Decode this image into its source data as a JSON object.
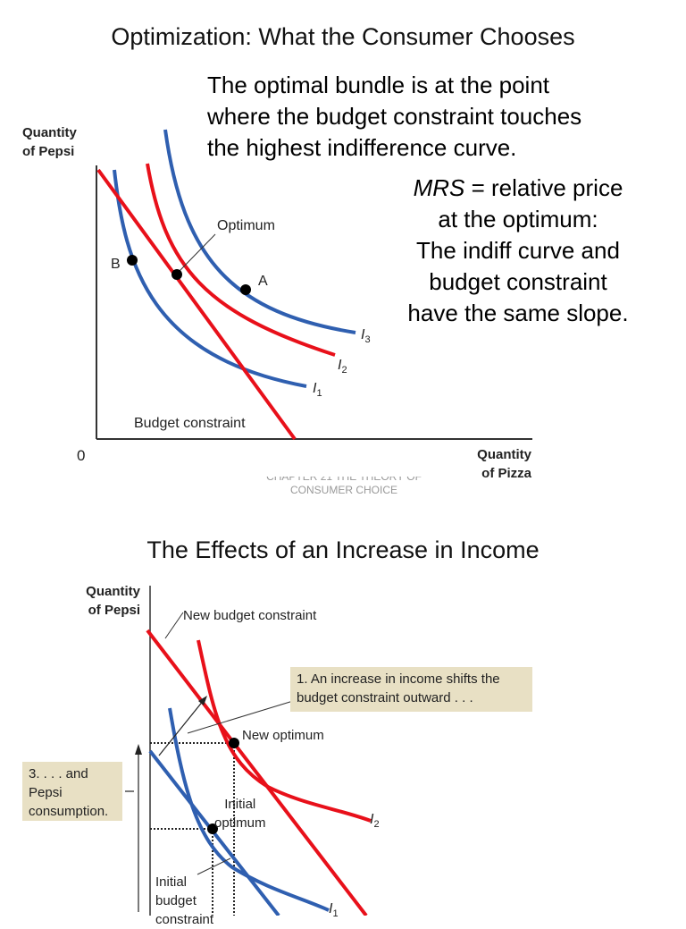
{
  "slide1": {
    "title": "Optimization:  What the Consumer Chooses",
    "text1": [
      "The optimal bundle is at the point",
      "where the budget constraint touches",
      "the highest indifference curve."
    ],
    "mrs_italic": "MRS",
    "mrs_rest": " = relative price",
    "text2": [
      "at the optimum:",
      "The indiff curve and",
      "budget constraint",
      "have the same slope."
    ],
    "footer": [
      "CHAPTER 21   THE THEORY OF",
      "CONSUMER CHOICE"
    ],
    "diagram": {
      "y_axis_label": [
        "Quantity",
        "of Pepsi"
      ],
      "x_axis_label": [
        "Quantity",
        "of Pizza"
      ],
      "origin": "0",
      "optimum_label": "Optimum",
      "point_a": "A",
      "point_b": "B",
      "budget_label": "Budget constraint",
      "curves": [
        {
          "name": "I",
          "sub": "1"
        },
        {
          "name": "I",
          "sub": "2"
        },
        {
          "name": "I",
          "sub": "3"
        }
      ],
      "colors": {
        "indifference_blue": "#2f5fb0",
        "red": "#e8101a"
      }
    }
  },
  "slide2": {
    "title": "The Effects of an Increase in Income",
    "diagram": {
      "y_axis_label": [
        "Quantity",
        "of Pepsi"
      ],
      "new_budget_label": "New budget constraint",
      "box1": [
        "1. An increase in income shifts the",
        "budget constraint outward . . ."
      ],
      "new_optimum": "New optimum",
      "initial_optimum": [
        "Initial",
        "optimum"
      ],
      "initial_budget": [
        "Initial",
        "budget",
        "constraint"
      ],
      "box3": [
        "3. . . . and",
        "Pepsi",
        "consumption."
      ],
      "curves": [
        {
          "name": "I",
          "sub": "1"
        },
        {
          "name": "I",
          "sub": "2"
        }
      ]
    }
  }
}
